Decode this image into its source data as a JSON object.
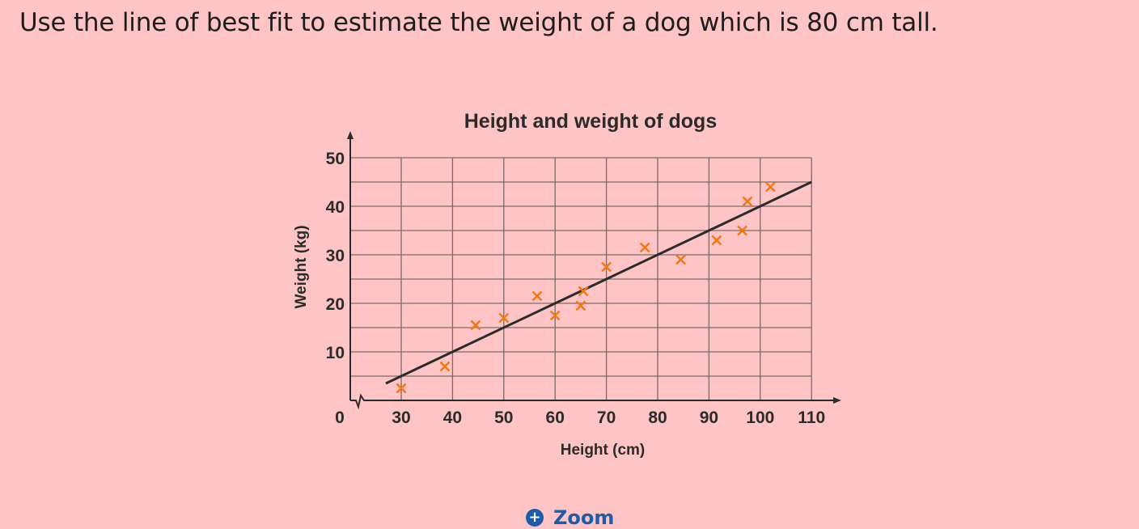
{
  "question": "Use the line of best fit to estimate the weight of a dog which is 80 cm tall.",
  "zoom_label": "Zoom",
  "colors": {
    "background": "#ffc4c6",
    "points": "#f07a1a",
    "line": "#2b2b2b",
    "grid": "#7a6a6a",
    "zoom": "#1d5ca8"
  },
  "chart_data": {
    "type": "scatter",
    "title": "Height and weight of dogs",
    "xlabel": "Height (cm)",
    "ylabel": "Weight (kg)",
    "xlim": [
      20,
      110
    ],
    "ylim": [
      0,
      50
    ],
    "x_axis_break": true,
    "origin_label": "0",
    "xticks": [
      30,
      40,
      50,
      60,
      70,
      80,
      90,
      100,
      110
    ],
    "yticks": [
      10,
      20,
      30,
      40,
      50
    ],
    "grid": true,
    "marker": "x",
    "points": [
      [
        30,
        2.5
      ],
      [
        38.5,
        7
      ],
      [
        44.5,
        15.5
      ],
      [
        50,
        17
      ],
      [
        56.5,
        21.5
      ],
      [
        60,
        17.5
      ],
      [
        65,
        19.5
      ],
      [
        65.5,
        22.5
      ],
      [
        70,
        27.5
      ],
      [
        77.5,
        31.5
      ],
      [
        84.5,
        29
      ],
      [
        91.5,
        33
      ],
      [
        96.5,
        35
      ],
      [
        97.5,
        41
      ],
      [
        102,
        44
      ]
    ],
    "best_fit_line": {
      "from": [
        27,
        3.5
      ],
      "to": [
        110,
        45
      ]
    }
  }
}
